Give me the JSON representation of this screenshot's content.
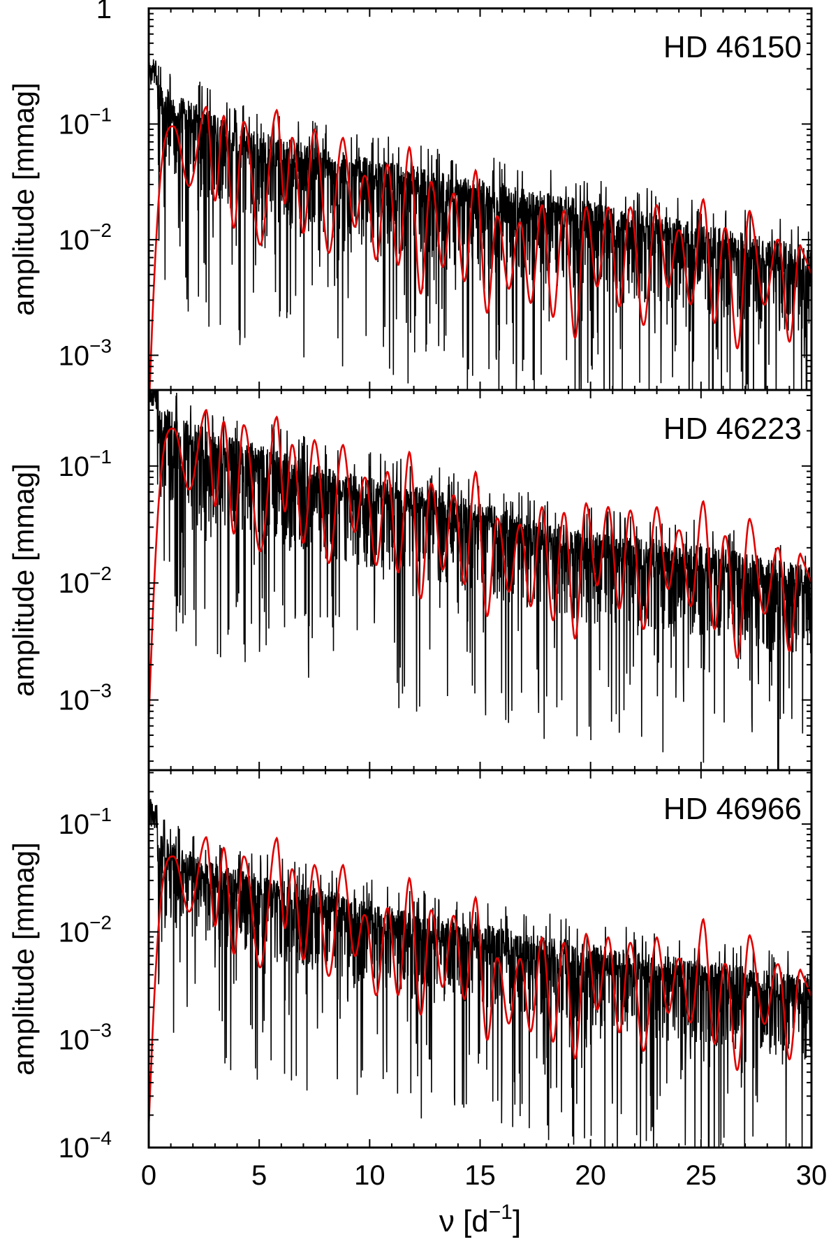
{
  "chart_data": {
    "type": "line",
    "xlabel": "ν [d",
    "xlabel_sup": "−1",
    "xlabel_end": "]",
    "xlim": [
      0,
      30
    ],
    "x_ticks": [
      0,
      5,
      10,
      15,
      20,
      25,
      30
    ],
    "x_tick_labels": [
      "0",
      "5",
      "10",
      "15",
      "20",
      "25",
      "30"
    ],
    "series_colors": {
      "observed": "#000000",
      "model": "#e00000"
    },
    "panels": [
      {
        "title": "HD 46150",
        "ylabel": "amplitude [mmag]",
        "ylim_log10": [
          -3.3,
          0
        ],
        "y_ticks_log10": [
          0,
          -1,
          -2,
          -3
        ],
        "y_tick_labels": [
          {
            "base": "1",
            "exp": ""
          },
          {
            "base": "10",
            "exp": "−1"
          },
          {
            "base": "10",
            "exp": "−2"
          },
          {
            "base": "10",
            "exp": "−3"
          }
        ],
        "observed_envelope": {
          "nu": [
            0,
            1,
            2,
            3,
            5,
            8,
            12,
            16,
            20,
            25,
            30
          ],
          "log10_amp": [
            -0.75,
            -0.85,
            -0.95,
            -1.05,
            -1.2,
            -1.35,
            -1.5,
            -1.65,
            -1.8,
            -2.0,
            -2.2
          ]
        },
        "model_peaks": {
          "nu": [
            1.1,
            2.6,
            3.4,
            4.3,
            5.8,
            6.5,
            7.5,
            8.8,
            9.8,
            10.8,
            11.8,
            12.8,
            13.8,
            14.8,
            15.8,
            16.8,
            17.8,
            18.8,
            19.8,
            20.8,
            21.8,
            23.0,
            24.0,
            25.1,
            26.1,
            27.2,
            28.5,
            29.5
          ],
          "log10_amp": [
            -1.02,
            -0.85,
            -0.93,
            -0.98,
            -0.88,
            -1.12,
            -1.05,
            -1.12,
            -1.45,
            -1.35,
            -1.2,
            -1.5,
            -1.6,
            -1.4,
            -1.8,
            -1.85,
            -1.7,
            -1.75,
            -1.72,
            -1.72,
            -1.72,
            -1.7,
            -1.92,
            -1.65,
            -1.9,
            -1.75,
            -2.0,
            -2.05
          ]
        }
      },
      {
        "title": "HD 46223",
        "ylabel": "amplitude [mmag]",
        "ylim_log10": [
          -3.6,
          -0.35
        ],
        "y_ticks_log10": [
          -1,
          -2,
          -3
        ],
        "y_tick_labels": [
          {
            "base": "10",
            "exp": "−1"
          },
          {
            "base": "10",
            "exp": "−2"
          },
          {
            "base": "10",
            "exp": "−3"
          }
        ],
        "observed_envelope": {
          "nu": [
            0,
            1,
            2,
            3,
            5,
            8,
            12,
            16,
            20,
            25,
            30
          ],
          "log10_amp": [
            -0.6,
            -0.65,
            -0.75,
            -0.85,
            -0.95,
            -1.15,
            -1.3,
            -1.5,
            -1.7,
            -1.8,
            -2.0
          ]
        },
        "model_peaks": {
          "nu": [
            1.1,
            2.6,
            3.4,
            4.3,
            5.8,
            6.5,
            7.5,
            8.8,
            9.8,
            10.8,
            11.8,
            12.8,
            13.8,
            14.8,
            15.8,
            16.8,
            17.8,
            18.8,
            19.8,
            20.8,
            21.8,
            23.0,
            24.0,
            25.1,
            26.1,
            27.2,
            28.5,
            29.5
          ],
          "log10_amp": [
            -0.68,
            -0.52,
            -0.62,
            -0.65,
            -0.58,
            -0.82,
            -0.78,
            -0.82,
            -1.1,
            -1.05,
            -0.88,
            -1.15,
            -1.25,
            -1.05,
            -1.45,
            -1.5,
            -1.35,
            -1.4,
            -1.32,
            -1.35,
            -1.38,
            -1.35,
            -1.55,
            -1.3,
            -1.6,
            -1.45,
            -1.7,
            -1.75
          ]
        }
      },
      {
        "title": "HD 46966",
        "ylabel": "amplitude [mmag]",
        "ylim_log10": [
          -4,
          -0.5
        ],
        "y_ticks_log10": [
          -1,
          -2,
          -3,
          -4
        ],
        "y_tick_labels": [
          {
            "base": "10",
            "exp": "−1"
          },
          {
            "base": "10",
            "exp": "−2"
          },
          {
            "base": "10",
            "exp": "−3"
          },
          {
            "base": "10",
            "exp": "−4"
          }
        ],
        "observed_envelope": {
          "nu": [
            0,
            1,
            2,
            3,
            5,
            8,
            12,
            16,
            20,
            25,
            30
          ],
          "log10_amp": [
            -1.1,
            -1.3,
            -1.4,
            -1.5,
            -1.6,
            -1.75,
            -1.95,
            -2.1,
            -2.25,
            -2.4,
            -2.55
          ]
        },
        "model_peaks": {
          "nu": [
            1.1,
            2.6,
            3.4,
            4.3,
            5.8,
            6.5,
            7.5,
            8.8,
            9.8,
            10.8,
            11.8,
            12.8,
            13.8,
            14.8,
            15.8,
            16.8,
            17.8,
            18.8,
            19.8,
            20.8,
            21.8,
            23.0,
            24.0,
            25.1,
            26.1,
            27.2,
            28.5,
            29.5
          ],
          "log10_amp": [
            -1.3,
            -1.12,
            -1.22,
            -1.3,
            -1.13,
            -1.42,
            -1.38,
            -1.38,
            -1.85,
            -1.78,
            -1.5,
            -1.8,
            -1.85,
            -1.68,
            -2.25,
            -2.25,
            -2.05,
            -2.1,
            -2.02,
            -2.05,
            -2.1,
            -2.05,
            -2.25,
            -1.88,
            -2.3,
            -2.03,
            -2.3,
            -2.35
          ]
        }
      }
    ]
  }
}
